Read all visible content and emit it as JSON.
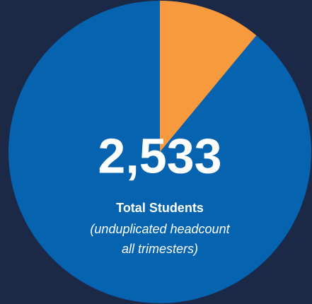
{
  "chart_data": {
    "type": "pie",
    "values": [
      11,
      89
    ],
    "colors": [
      "#f79a3e",
      "#0563b0"
    ],
    "start_angle": 0,
    "direction": "clockwise",
    "headline": "2,533",
    "caption": "Total Students",
    "note_lines": [
      "(unduplicated headcount",
      "all trimesters)"
    ]
  }
}
